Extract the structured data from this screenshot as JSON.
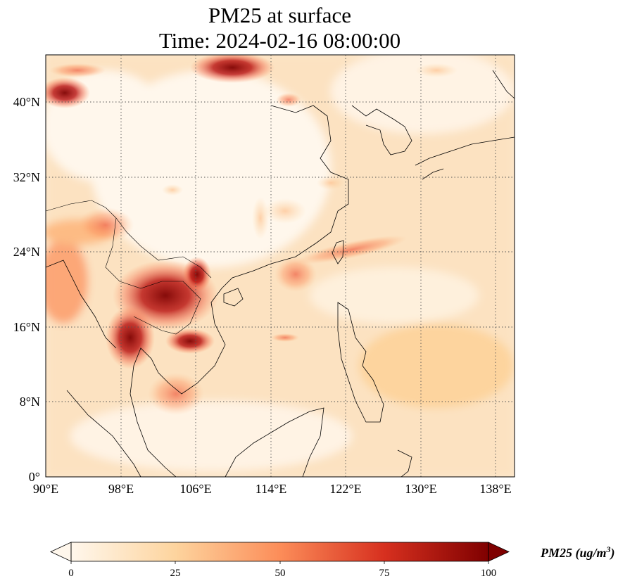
{
  "figure": {
    "title_line1": "PM25 at surface",
    "title_line2": "Time: 2024-02-16 08:00:00"
  },
  "map": {
    "projection": "PlateCarree",
    "lon_range_deg": [
      90,
      140
    ],
    "lat_range_deg": [
      0,
      45
    ],
    "gridlines": "dotted",
    "x_ticks": [
      "90°E",
      "98°E",
      "106°E",
      "114°E",
      "122°E",
      "130°E",
      "138°E"
    ],
    "y_ticks": [
      "0°",
      "8°N",
      "16°N",
      "24°N",
      "32°N",
      "40°N"
    ],
    "colormap": "OrRd",
    "hotspots": [
      {
        "region": "Northern Laos / Northern Vietnam",
        "level": "high"
      },
      {
        "region": "Myanmar-Thailand border",
        "level": "high"
      },
      {
        "region": "Cambodia (Tonle Sap)",
        "level": "high"
      },
      {
        "region": "Inner Mongolia (north edge)",
        "level": "high"
      },
      {
        "region": "Northwest corner (~40°N, 90°E)",
        "level": "high"
      },
      {
        "region": "Taiwan Strait band",
        "level": "moderate"
      }
    ]
  },
  "colorbar": {
    "label": "PM25 (ug/m",
    "label_sup": "3",
    "label_close": ")",
    "ticks": [
      "0",
      "25",
      "50",
      "75",
      "100"
    ],
    "range": [
      0,
      100
    ],
    "extend": "both",
    "colors": [
      "#fff7ec",
      "#fdd49e",
      "#fc8d59",
      "#d7301f",
      "#7f0000"
    ]
  }
}
